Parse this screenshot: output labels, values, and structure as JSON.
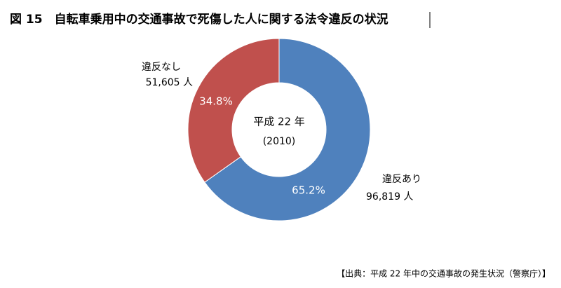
{
  "chart_data": {
    "type": "donut",
    "title": "図 15　自転車乗用中の交通事故で死傷した人に関する法令違反の状況",
    "categories": [
      "違反あり",
      "違反なし"
    ],
    "values": [
      65.2,
      34.8
    ],
    "value_labels": [
      "65.2%",
      "34.8%"
    ],
    "counts": [
      96819,
      51605
    ],
    "count_labels": [
      "96,819 人",
      "51,605 人"
    ],
    "colors": [
      "#4f81bd",
      "#c0504d"
    ],
    "center_text": [
      "平成 22 年",
      "(2010)"
    ],
    "source": "【出典：平成 22 年中の交通事故の発生状況（警察庁）】"
  }
}
